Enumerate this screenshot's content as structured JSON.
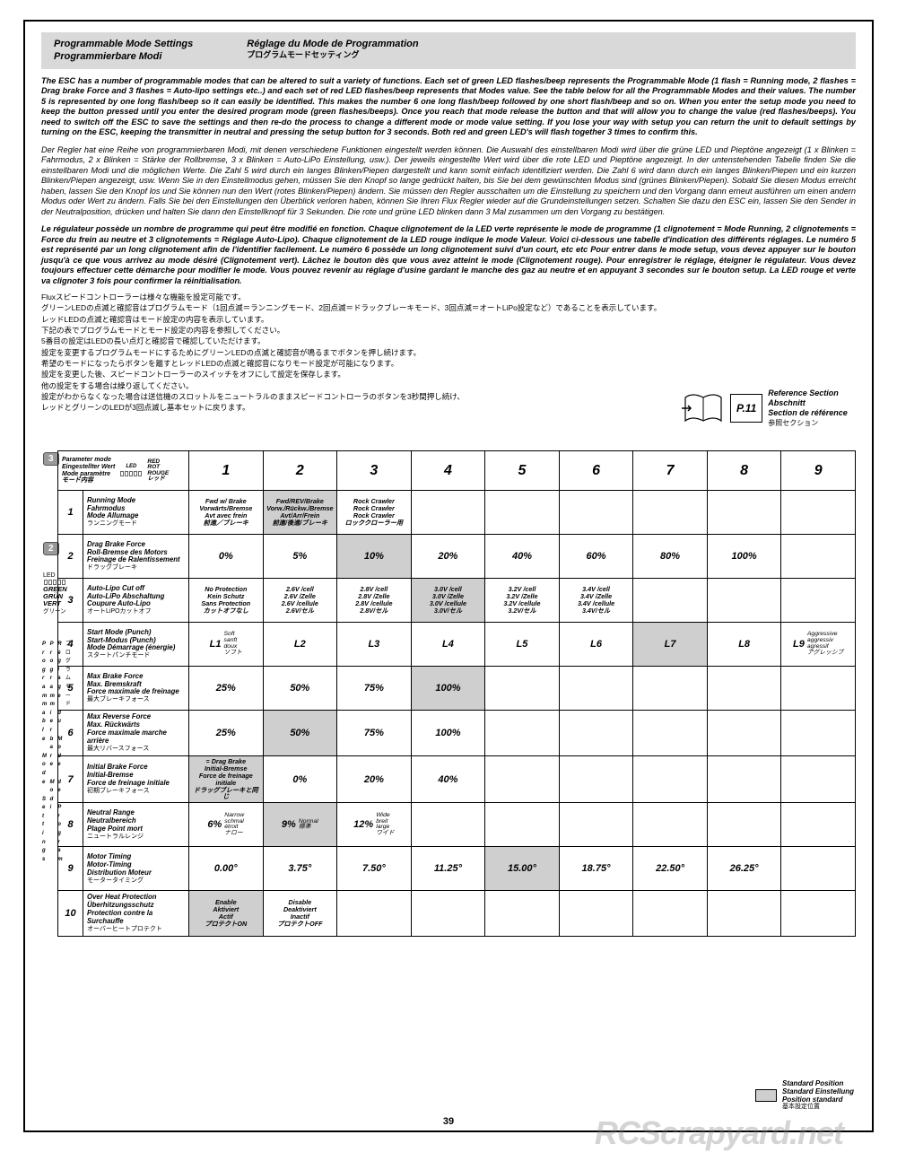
{
  "title": {
    "en": "Programmable Mode Settings",
    "de": "Programmierbare Modi",
    "fr": "Réglage du Mode de Programmation",
    "jp": "プログラムモードセッティング"
  },
  "paragraphs": {
    "en": "The ESC has a number of programmable modes that can be altered to suit a variety of functions. Each set of green LED flashes/beep represents the Programmable Mode (1 flash = Running mode, 2 flashes = Drag brake Force and 3 flashes = Auto-lipo settings etc..) and each set of red LED flashes/beep represents that Modes value. See the table below for all the Programmable Modes and their values. The number 5 is represented by one long flash/beep so it can easily be identified. This makes the number 6 one long flash/beep followed by one short flash/beep and so on. When you enter the setup mode you need to keep the button pressed until you enter the desired program mode (green flashes/beeps). Once you reach that mode release the button and that will allow you to change the value (red flashes/beeps). You need to switch off the ESC to save the settings and then re-do the process to change a different mode or mode value setting. If you lose your way with setup you can return the unit to default settings by turning on the ESC, keeping the transmitter in neutral and pressing the setup button for 3 seconds. Both red and green LED's will flash together 3 times to confirm this.",
    "de": "Der Regler hat eine Reihe von programmierbaren Modi, mit denen verschiedene Funktionen eingestellt werden können. Die Auswahl des einstellbaren Modi wird über die grüne LED und Pieptöne angezeigt (1 x Blinken = Fahrmodus, 2 x Blinken = Stärke der Rollbremse, 3 x Blinken = Auto-LiPo Einstellung, usw.). Der jeweils eingestellte Wert wird über die rote LED und Pieptöne angezeigt. In der untenstehenden Tabelle finden Sie die einstellbaren Modi und die möglichen Werte. Die Zahl 5 wird durch ein langes Blinken/Piepen dargestellt und kann somit einfach identifiziert werden. Die Zahl 6 wird dann durch ein langes Blinken/Piepen und ein kurzen Blinken/Piepen angezeigt, usw. Wenn Sie in den Einstellmodus gehen, müssen Sie den Knopf so lange gedrückt halten, bis Sie bei dem gewünschten Modus sind (grünes Blinken/Piepen). Sobald Sie diesen Modus erreicht haben, lassen Sie den Knopf los und Sie können nun den Wert (rotes Blinken/Piepen) ändern. Sie müssen den Regler ausschalten um die Einstellung zu speichern und den Vorgang dann erneut ausführen um einen andern Modus oder Wert zu ändern. Falls Sie bei den Einstellungen den Überblick verloren haben, können Sie Ihren Flux Regler wieder auf die Grundeinstellungen setzen. Schalten Sie dazu den ESC ein, lassen Sie den Sender in der Neutralposition, drücken und halten Sie dann den Einstellknopf für 3 Sekunden. Die rote und grüne LED blinken dann 3 Mal zusammen um den Vorgang zu bestätigen.",
    "fr": "Le régulateur possède un nombre de programme qui peut être modifié en fonction. Chaque clignotement de la LED verte représente le mode de programme (1 clignotement = Mode Running, 2 clignotements = Force du frein au neutre et 3 clignotements = Réglage Auto-Lipo). Chaque clignotement de la LED rouge indique le mode Valeur. Voici ci-dessous une tabelle d'indication des différents réglages. Le numéro 5 est représenté par un long clignotement afin de l'identifier facilement. Le numéro 6 possède un long clignotement suivi d'un court, etc etc Pour entrer dans le mode setup, vous devez appuyer sur le bouton jusqu'à ce que vous arrivez au mode désiré (Clignotement vert). Lâchez le bouton dès que vous avez atteint le mode (Clignotement rouge). Pour enregistrer le réglage, éteigner le régulateur. Vous devez toujours effectuer cette démarche pour modifier le mode. Vous pouvez revenir au réglage d'usine gardant le manche des gaz au neutre et en appuyant 3 secondes sur le bouton setup. La LED rouge et verte va clignoter 3 fois pour confirmer la réinitialisation.",
    "jp": "Fluxスピードコントローラーは様々な機能を設定可能です。\nグリーンLEDの点滅と確認音はプログラムモード（1回点滅＝ランニングモード、2回点滅＝ドラックブレーキモード、3回点滅＝オートLiPo設定など）であることを表示しています。\nレッドLEDの点滅と確認音はモード設定の内容を表示しています。\n下記の表でプログラムモードとモード設定の内容を参照してください。\n5番目の設定はLEDの長い点灯と確認音で確認していただけます。\n設定を変更するプログラムモードにするためにグリーンLEDの点滅と確認音が鳴るまでボタンを押し続けます。\n希望のモードになったらボタンを離すとレッドLEDの点滅と確認音になりモード設定が可能になります。\n設定を変更した後、スピードコントローラーのスイッチをオフにして設定を保存します。\n他の設定をする場合は繰り返してください。\n設定がわからなくなった場合は送信機のスロットルをニュートラルのままスピードコントローラのボタンを3秒間押し続け、\nレッドとグリーンのLEDが3回点滅し基本セットに戻ります。"
  },
  "ref": {
    "page": "P.11",
    "lines": [
      "Reference Section",
      "Abschnitt",
      "Section de référence",
      "参照セクション"
    ]
  },
  "header": {
    "param": "Parameter mode\nEingestellter Wert\nMode paramètre\nモード内容",
    "led": "LED",
    "red": "RED\nROT\nROUGE\nレッド",
    "nums": [
      "1",
      "2",
      "3",
      "4",
      "5",
      "6",
      "7",
      "8",
      "9"
    ]
  },
  "led_green": {
    "lines": [
      "LED",
      "",
      "GREEN",
      "GRÜN",
      "VERT",
      "グリーン"
    ]
  },
  "rows": [
    {
      "n": "1",
      "label": "Running Mode\nFahrmodus\nMode Allumage\nランニングモード",
      "cells": [
        {
          "t": "Fwd w/ Brake\nVorwärts/Bremse\nAvt avec frein\n前進／ブレーキ"
        },
        {
          "t": "Fwd/REV/Brake\nVorw./Rückw./Bremse\nAvt/Arr/Frein\n前進/後進/ブレーキ",
          "hl": true
        },
        {
          "t": "Rock Crawler\nRock Crawler\nRock Crawler\nロッククローラー用"
        },
        {
          "t": ""
        },
        {
          "t": ""
        },
        {
          "t": ""
        },
        {
          "t": ""
        },
        {
          "t": ""
        },
        {
          "t": ""
        }
      ]
    },
    {
      "n": "2",
      "label": "Drag Brake Force\nRoll-Bremse des Motors\nFreinage de Ralentissement\nドラッグブレーキ",
      "cells": [
        {
          "t": "0%",
          "big": true
        },
        {
          "t": "5%",
          "big": true
        },
        {
          "t": "10%",
          "big": true,
          "hl": true
        },
        {
          "t": "20%",
          "big": true
        },
        {
          "t": "40%",
          "big": true
        },
        {
          "t": "60%",
          "big": true
        },
        {
          "t": "80%",
          "big": true
        },
        {
          "t": "100%",
          "big": true
        },
        {
          "t": ""
        }
      ]
    },
    {
      "n": "3",
      "label": "Auto-Lipo Cut off\nAuto-LiPo Abschaltung\nCoupure Auto-Lipo\nオートLiPOカットオフ",
      "cells": [
        {
          "t": "No Protection\nKein Schutz\nSans Protection\nカットオフなし"
        },
        {
          "t": "2.6V /cell\n2.6V /Zelle\n2.6V /cellule\n2.6V/セル"
        },
        {
          "t": "2.8V /cell\n2.8V /Zelle\n2.8V /cellule\n2.8V/セル"
        },
        {
          "t": "3.0V /cell\n3.0V /Zelle\n3.0V /cellule\n3.0V/セル",
          "hl": true
        },
        {
          "t": "3.2V /cell\n3.2V /Zelle\n3.2V /cellule\n3.2V/セル"
        },
        {
          "t": "3.4V /cell\n3.4V /Zelle\n3.4V /cellule\n3.4V/セル"
        },
        {
          "t": ""
        },
        {
          "t": ""
        },
        {
          "t": ""
        }
      ]
    },
    {
      "n": "4",
      "label": "Start Mode (Punch)\nStart-Modus (Punch)\nMode Démarrage (énergie)\nスタートパンチモード",
      "cells": [
        {
          "t": "L1",
          "big": true,
          "sub": "Soft\nsanft\ndoux\nソフト"
        },
        {
          "t": "L2",
          "big": true
        },
        {
          "t": "L3",
          "big": true
        },
        {
          "t": "L4",
          "big": true
        },
        {
          "t": "L5",
          "big": true
        },
        {
          "t": "L6",
          "big": true
        },
        {
          "t": "L7",
          "big": true,
          "hl": true
        },
        {
          "t": "L8",
          "big": true
        },
        {
          "t": "L9",
          "big": true,
          "sub": "Aggressive\naggressiv\nagressif\nアグレッシブ"
        }
      ]
    },
    {
      "n": "5",
      "label": "Max Brake Force\nMax. Bremskraft\nForce maximale de freinage\n最大ブレーキフォース",
      "cells": [
        {
          "t": "25%",
          "big": true
        },
        {
          "t": "50%",
          "big": true
        },
        {
          "t": "75%",
          "big": true
        },
        {
          "t": "100%",
          "big": true,
          "hl": true
        },
        {
          "t": ""
        },
        {
          "t": ""
        },
        {
          "t": ""
        },
        {
          "t": ""
        },
        {
          "t": ""
        }
      ]
    },
    {
      "n": "6",
      "label": "Max Reverse Force\nMax. Rückwärts\nForce maximale marche arrière\n最大リバースフォース",
      "cells": [
        {
          "t": "25%",
          "big": true
        },
        {
          "t": "50%",
          "big": true,
          "hl": true
        },
        {
          "t": "75%",
          "big": true
        },
        {
          "t": "100%",
          "big": true
        },
        {
          "t": ""
        },
        {
          "t": ""
        },
        {
          "t": ""
        },
        {
          "t": ""
        },
        {
          "t": ""
        }
      ]
    },
    {
      "n": "7",
      "label": "Initial Brake Force\nInitial-Bremse\nForce de freinage initiale\n初期ブレーキフォース",
      "cells": [
        {
          "t": "= Drag Brake\nInitial-Bremse\nForce de freinage initiale\nドラッグブレーキと同じ",
          "hl": true
        },
        {
          "t": "0%",
          "big": true
        },
        {
          "t": "20%",
          "big": true
        },
        {
          "t": "40%",
          "big": true
        },
        {
          "t": ""
        },
        {
          "t": ""
        },
        {
          "t": ""
        },
        {
          "t": ""
        },
        {
          "t": ""
        }
      ]
    },
    {
      "n": "8",
      "label": "Neutral Range\nNeutralbereich\nPlage Point mort\nニュートラルレンジ",
      "cells": [
        {
          "t": "6%",
          "big": true,
          "sub": "Narrow\nschmal\nétroit\nナロー"
        },
        {
          "t": "9%",
          "big": true,
          "sub": "Normal\n標準",
          "hl": true
        },
        {
          "t": "12%",
          "big": true,
          "sub": "Wide\nbreit\nlarge\nワイド"
        },
        {
          "t": ""
        },
        {
          "t": ""
        },
        {
          "t": ""
        },
        {
          "t": ""
        },
        {
          "t": ""
        },
        {
          "t": ""
        }
      ]
    },
    {
      "n": "9",
      "label": "Motor Timing\nMotor-Timing\nDistribution Moteur\nモータータイミング",
      "cells": [
        {
          "t": "0.00°",
          "big": true
        },
        {
          "t": "3.75°",
          "big": true
        },
        {
          "t": "7.50°",
          "big": true
        },
        {
          "t": "11.25°",
          "big": true
        },
        {
          "t": "15.00°",
          "big": true,
          "hl": true
        },
        {
          "t": "18.75°",
          "big": true
        },
        {
          "t": "22.50°",
          "big": true
        },
        {
          "t": "26.25°",
          "big": true
        },
        {
          "t": ""
        }
      ]
    },
    {
      "n": "10",
      "label": "Over Heat Protection\nÜberhitzungsschutz\nProtection contre la Surchauffe\nオーバーヒートプロテクト",
      "cells": [
        {
          "t": "Enable\nAktiviert\nActif\nプロテクトON",
          "hl": true
        },
        {
          "t": "Disable\nDeaktiviert\nInactif\nプロテクトOFF"
        },
        {
          "t": ""
        },
        {
          "t": ""
        },
        {
          "t": ""
        },
        {
          "t": ""
        },
        {
          "t": ""
        },
        {
          "t": ""
        },
        {
          "t": ""
        }
      ]
    }
  ],
  "footer": {
    "lines": [
      "Standard Position",
      "Standard Einstellung",
      "Position standard",
      "基本設定位置"
    ]
  },
  "watermark": "RCScrapyard.net",
  "page_num": "39",
  "colors": {
    "shade": "#cfcfcf",
    "titlebar": "#d9d9d9"
  }
}
